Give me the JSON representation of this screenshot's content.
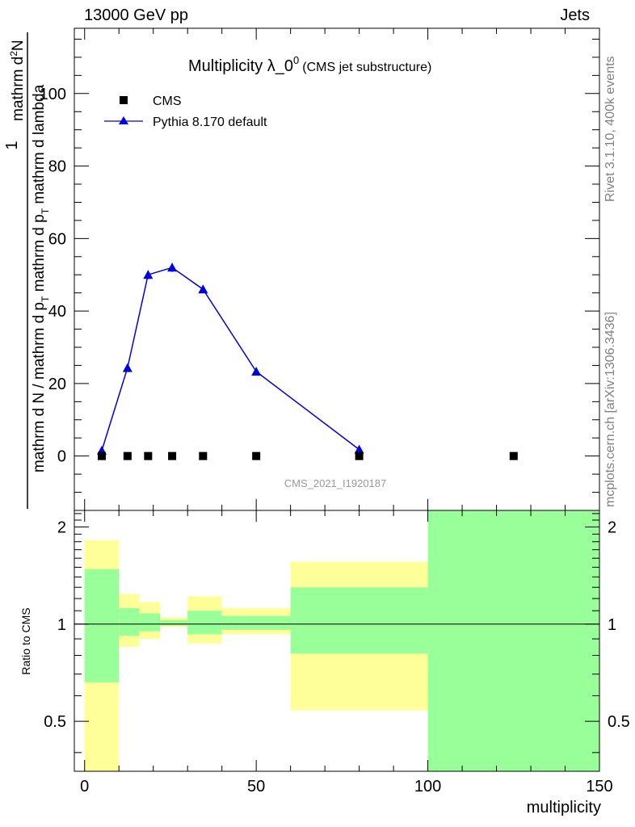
{
  "header": {
    "left": "13000 GeV pp",
    "right": "Jets"
  },
  "side": {
    "rivet": "Rivet 3.1.10,  400k events",
    "mcplots": "mcplots.cern.ch [arXiv:1306.3436]"
  },
  "chart_data": [
    {
      "type": "scatter",
      "title": "Multiplicity λ_0",
      "title_sup": "0",
      "title_note": "(CMS jet substructure)",
      "watermark": "CMS_2021_I1920187",
      "ylabel_numerator": "1",
      "ylabel_frac_num": "mathrm d",
      "ylabel_frac_num_sup": "2",
      "ylabel_frac_num_tail": "N",
      "ylabel_frac_den": "mathrm d N / mathrm d p",
      "ylabel_frac_den_sub": "T",
      "ylabel_frac_den_mid": " mathrm d p",
      "ylabel_frac_den_sub2": "T",
      "ylabel_frac_den_tail": " mathrm d lambda",
      "xlim": [
        -3,
        150
      ],
      "ylim": [
        -15,
        118
      ],
      "yticks": [
        0,
        20,
        40,
        60,
        80,
        100
      ],
      "legend_position": "top-left",
      "series": [
        {
          "name": "CMS",
          "marker": "square",
          "color": "#000000",
          "x": [
            5,
            12.5,
            18.5,
            25.5,
            34.5,
            50,
            80,
            125
          ],
          "y": [
            0,
            0,
            0,
            0,
            0,
            0,
            0,
            0
          ]
        },
        {
          "name": "Pythia 8.170 default",
          "marker": "triangle",
          "color": "#0000dd",
          "x": [
            5,
            12.5,
            18.5,
            25.5,
            34.5,
            50,
            80
          ],
          "y": [
            1.5,
            24.3,
            50,
            52,
            46,
            23.3,
            1.8
          ],
          "err": [
            0.4,
            0.8,
            1.2,
            1.2,
            1.0,
            0.6,
            0.3
          ]
        }
      ]
    },
    {
      "type": "area",
      "ylabel": "Ratio to CMS",
      "xlabel": "multiplicity",
      "xlim": [
        -3,
        150
      ],
      "ylim": [
        0.35,
        2.25
      ],
      "yscale": "log",
      "reference": 1,
      "xticks": [
        0,
        50,
        100,
        150
      ],
      "yticks": [
        0.5,
        1,
        2
      ],
      "bands": [
        {
          "x0": 0,
          "x1": 10,
          "yellow": [
            0.32,
            1.82
          ],
          "green": [
            0.66,
            1.48
          ]
        },
        {
          "x0": 10,
          "x1": 16,
          "yellow": [
            0.85,
            1.24
          ],
          "green": [
            0.92,
            1.12
          ]
        },
        {
          "x0": 16,
          "x1": 22,
          "yellow": [
            0.9,
            1.17
          ],
          "green": [
            0.95,
            1.08
          ]
        },
        {
          "x0": 22,
          "x1": 30,
          "yellow": [
            0.98,
            1.05
          ],
          "green": [
            0.99,
            1.03
          ]
        },
        {
          "x0": 30,
          "x1": 40,
          "yellow": [
            0.87,
            1.22
          ],
          "green": [
            0.93,
            1.1
          ]
        },
        {
          "x0": 40,
          "x1": 60,
          "yellow": [
            0.93,
            1.12
          ],
          "green": [
            0.96,
            1.06
          ]
        },
        {
          "x0": 60,
          "x1": 100,
          "yellow": [
            0.54,
            1.56
          ],
          "green": [
            0.81,
            1.3
          ]
        },
        {
          "x0": 100,
          "x1": 150,
          "yellow": [
            0.3,
            2.4
          ],
          "green": [
            0.3,
            2.4
          ]
        }
      ],
      "colors": {
        "yellow": "#ffff99",
        "green": "#99ff99"
      }
    }
  ]
}
